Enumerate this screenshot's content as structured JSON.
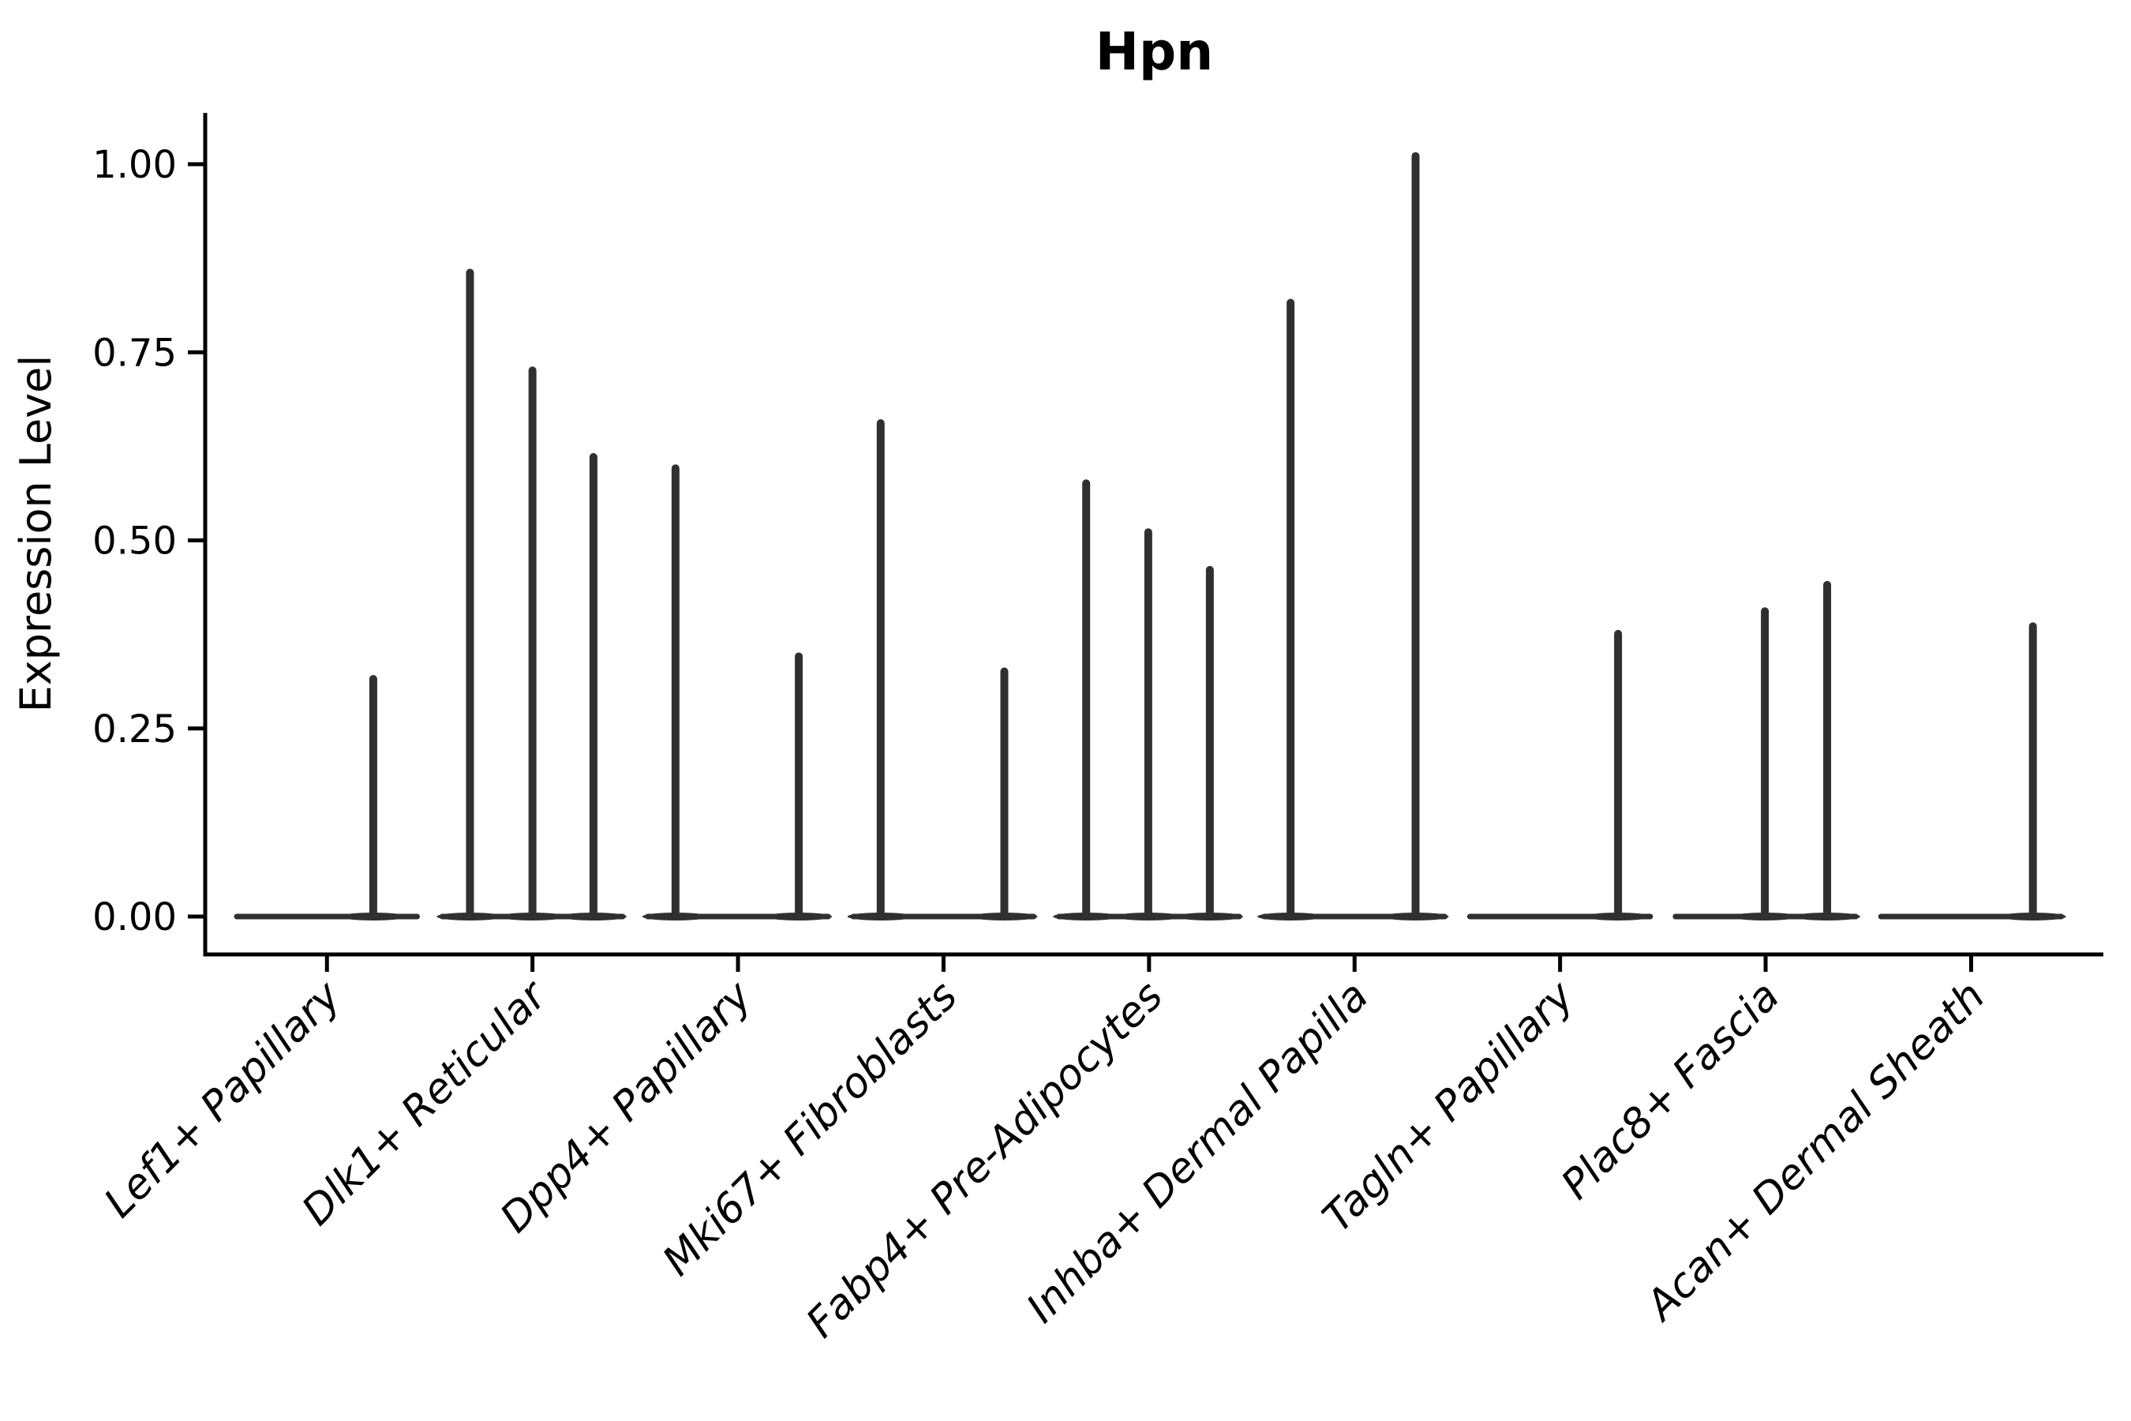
{
  "figure": {
    "title": "Hpn"
  },
  "chart_data": {
    "type": "violin",
    "title": "Hpn",
    "xlabel": "",
    "ylabel": "Expression Level",
    "yticks": [
      0,
      0.25,
      0.5,
      0.75,
      1.0
    ],
    "ytick_labels": [
      "0.00",
      "0.25",
      "0.50",
      "0.75",
      "1.00"
    ],
    "ylim": [
      -0.05,
      1.07
    ],
    "grid": false,
    "legend": null,
    "violin_color": "#303030",
    "axis_color": "#000000",
    "description": "Single-gene violin plot; each cell-type group shows narrow spike violins rising from a flat zero-expression baseline",
    "categories": [
      {
        "label": "Lef1+ Papillary",
        "violins": [
          {
            "offset": 0.746,
            "peak": 0.32
          }
        ]
      },
      {
        "label": "Dlk1+ Reticular",
        "violins": [
          {
            "offset": 0.168,
            "peak": 0.86
          },
          {
            "offset": 0.5,
            "peak": 0.73
          },
          {
            "offset": 0.824,
            "peak": 0.615
          }
        ]
      },
      {
        "label": "Dpp4+ Papillary",
        "violins": [
          {
            "offset": 0.168,
            "peak": 0.6
          },
          {
            "offset": 0.823,
            "peak": 0.35
          }
        ]
      },
      {
        "label": "Mki67+ Fibroblasts",
        "violins": [
          {
            "offset": 0.166,
            "peak": 0.66
          },
          {
            "offset": 0.823,
            "peak": 0.33
          }
        ]
      },
      {
        "label": "Fabp4+ Pre-Adipocytes",
        "violins": [
          {
            "offset": 0.166,
            "peak": 0.58
          },
          {
            "offset": 0.496,
            "peak": 0.515
          },
          {
            "offset": 0.823,
            "peak": 0.465
          }
        ]
      },
      {
        "label": "Inhba+ Dermal Papilla",
        "violins": [
          {
            "offset": 0.16,
            "peak": 0.82
          },
          {
            "offset": 0.824,
            "peak": 1.015
          }
        ]
      },
      {
        "label": "Tagln+ Papillary",
        "violins": [
          {
            "offset": 0.808,
            "peak": 0.38
          }
        ]
      },
      {
        "label": "Plac8+ Fascia",
        "violins": [
          {
            "offset": 0.496,
            "peak": 0.41
          },
          {
            "offset": 0.827,
            "peak": 0.445
          }
        ]
      },
      {
        "label": "Acan+ Dermal Sheath",
        "violins": [
          {
            "offset": 0.828,
            "peak": 0.39
          }
        ]
      }
    ]
  }
}
